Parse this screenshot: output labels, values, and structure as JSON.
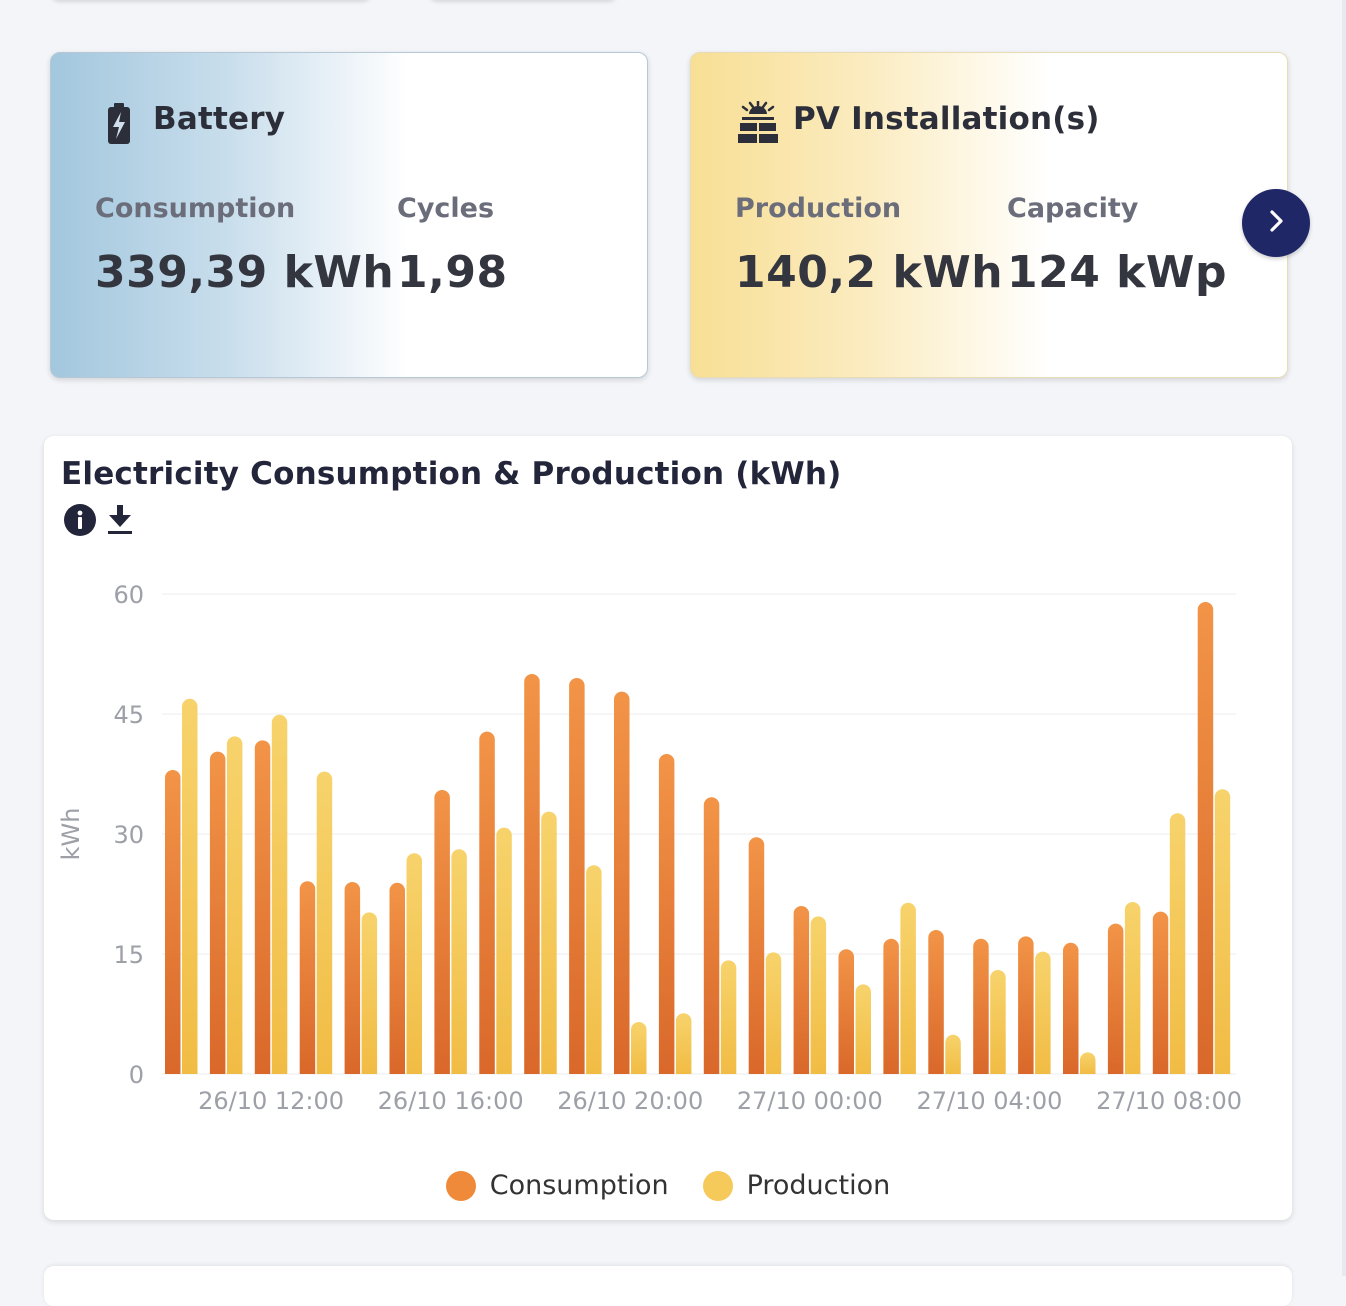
{
  "battery_card": {
    "title": "Battery",
    "icon": "battery-charging-icon",
    "stats": [
      {
        "label": "Consumption",
        "value": "339,39 kWh"
      },
      {
        "label": "Cycles",
        "value": "1,98"
      }
    ]
  },
  "pv_card": {
    "title": "PV Installation(s)",
    "icon": "solar-panel-icon",
    "stats": [
      {
        "label": "Production",
        "value": "140,2 kWh"
      },
      {
        "label": "Capacity",
        "value": "124 kWp"
      }
    ]
  },
  "next_button_icon": "chevron-right-icon",
  "chart": {
    "title": "Electricity Consumption & Production (kWh)",
    "info_icon": "info-icon",
    "download_icon": "download-icon"
  },
  "chart_data": {
    "type": "bar",
    "ylabel": "kWh",
    "ylim": [
      0,
      60
    ],
    "yticks": [
      "0",
      "15",
      "30",
      "45",
      "60"
    ],
    "xtick_labels": [
      "26/10 12:00",
      "26/10 16:00",
      "26/10 20:00",
      "27/10 00:00",
      "27/10 04:00",
      "27/10 08:00"
    ],
    "xtick_bar_index": [
      2,
      6,
      10,
      14,
      18,
      22
    ],
    "series": [
      {
        "name": "Consumption",
        "color": "#ef8a3a",
        "values": [
          38,
          40.3,
          41.7,
          24.1,
          24,
          23.9,
          35.5,
          42.8,
          50,
          49.5,
          47.8,
          40,
          34.6,
          29.6,
          21,
          15.6,
          16.9,
          18,
          16.9,
          17.2,
          16.4,
          18.8,
          20.3,
          59
        ]
      },
      {
        "name": "Production",
        "color": "#f5c95a",
        "values": [
          46.9,
          42.2,
          44.9,
          37.8,
          20.2,
          27.6,
          28.1,
          30.8,
          32.8,
          26.1,
          6.5,
          7.6,
          14.2,
          15.2,
          19.7,
          11.2,
          21.4,
          4.9,
          13,
          15.3,
          2.7,
          21.5,
          32.6,
          35.6
        ]
      }
    ],
    "grid": true,
    "legend": "bottom"
  }
}
